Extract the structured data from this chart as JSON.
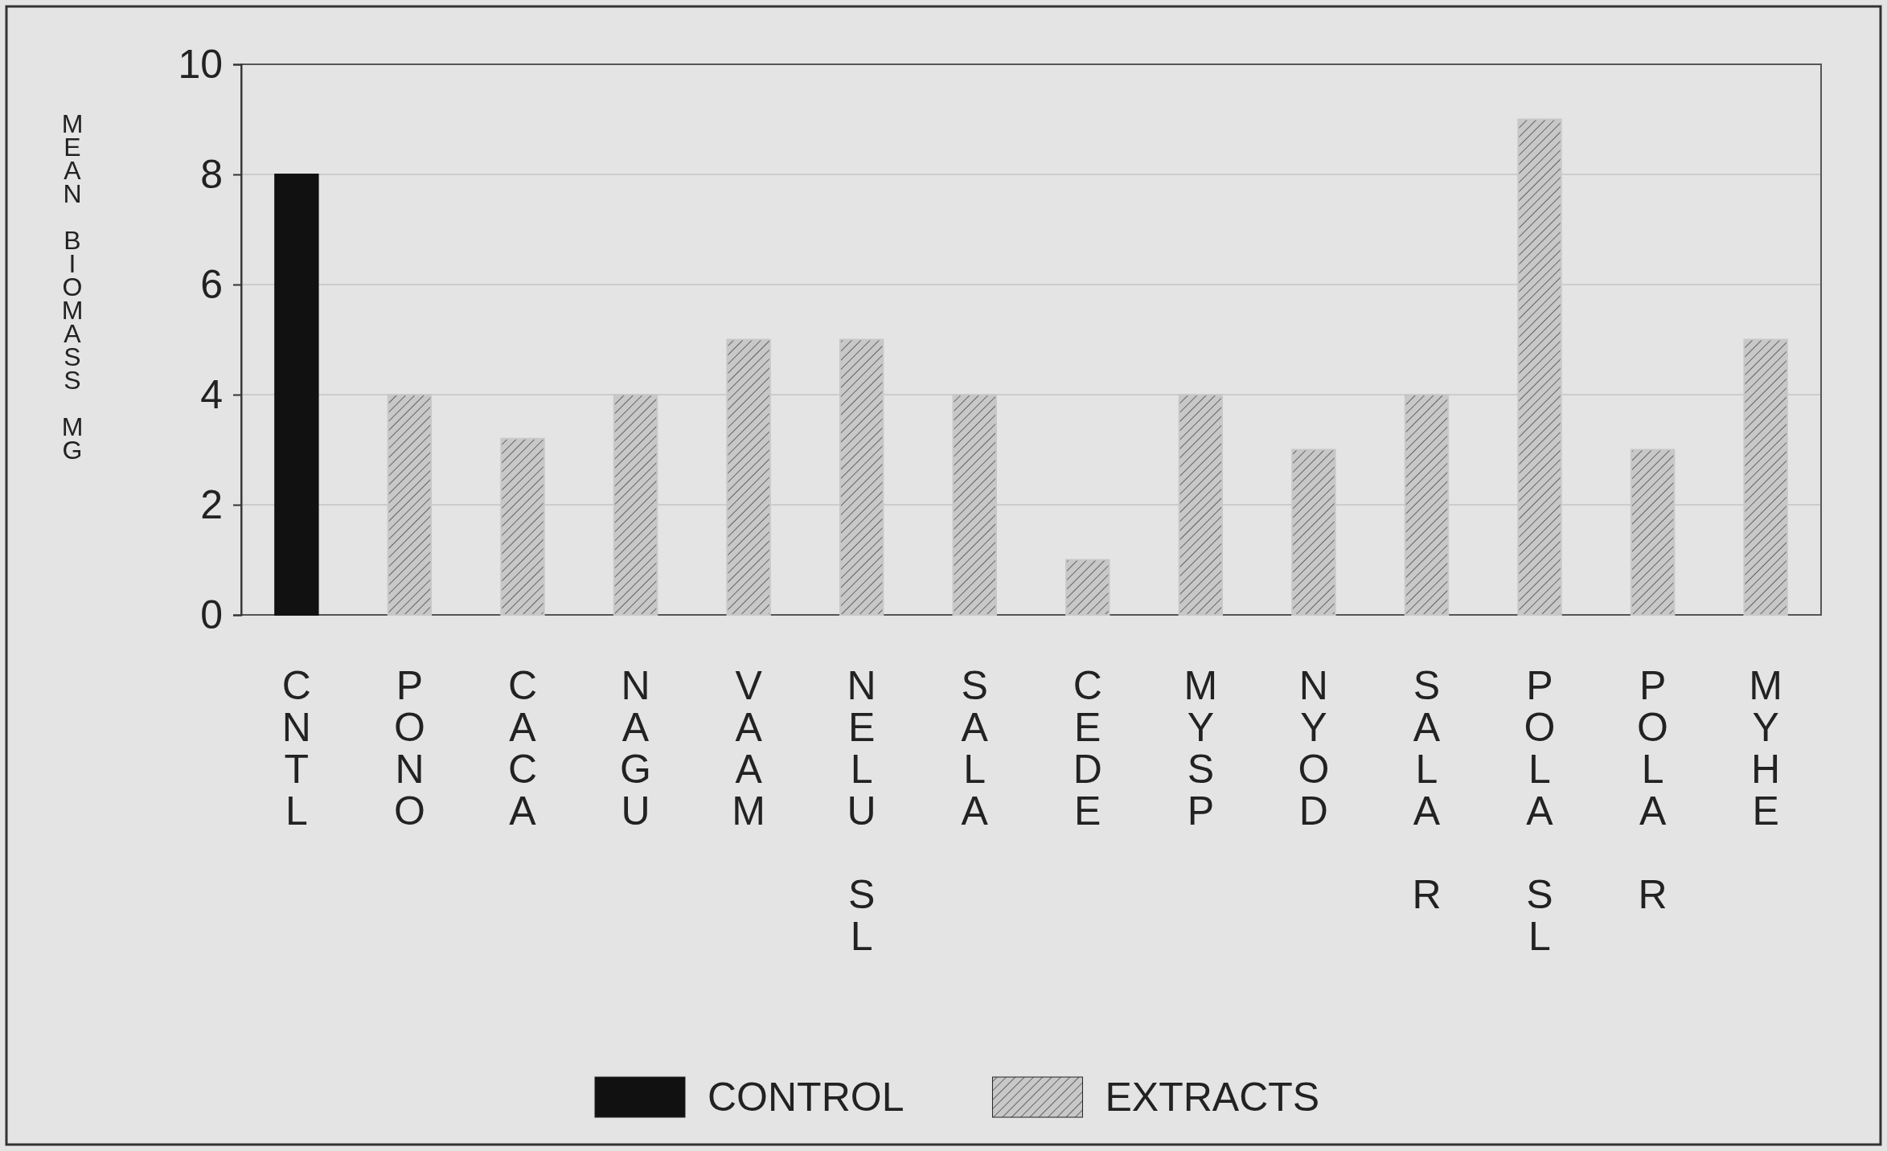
{
  "chart_data": {
    "type": "bar",
    "ylabel": "MEAN BIOMASS MG",
    "categories": [
      "CNTL",
      "PONO",
      "CACA",
      "NAGU",
      "VAAM",
      "NELU SL",
      "SALA",
      "CEDE",
      "MYSP",
      "NYOD",
      "SALA R",
      "POLA SL",
      "POLA R",
      "MYHE"
    ],
    "series": [
      {
        "name": "CONTROL",
        "color": "#111111",
        "values": [
          8,
          null,
          null,
          null,
          null,
          null,
          null,
          null,
          null,
          null,
          null,
          null,
          null,
          null
        ]
      },
      {
        "name": "EXTRACTS",
        "color": "#c8c8c8",
        "values": [
          null,
          4,
          3.2,
          4,
          5,
          5,
          4,
          1,
          4,
          3,
          4,
          9,
          3,
          5
        ]
      }
    ],
    "ylim": [
      0,
      10
    ],
    "yticks": [
      0,
      2,
      4,
      6,
      8,
      10
    ],
    "grid": "y",
    "legend": "bottom"
  }
}
